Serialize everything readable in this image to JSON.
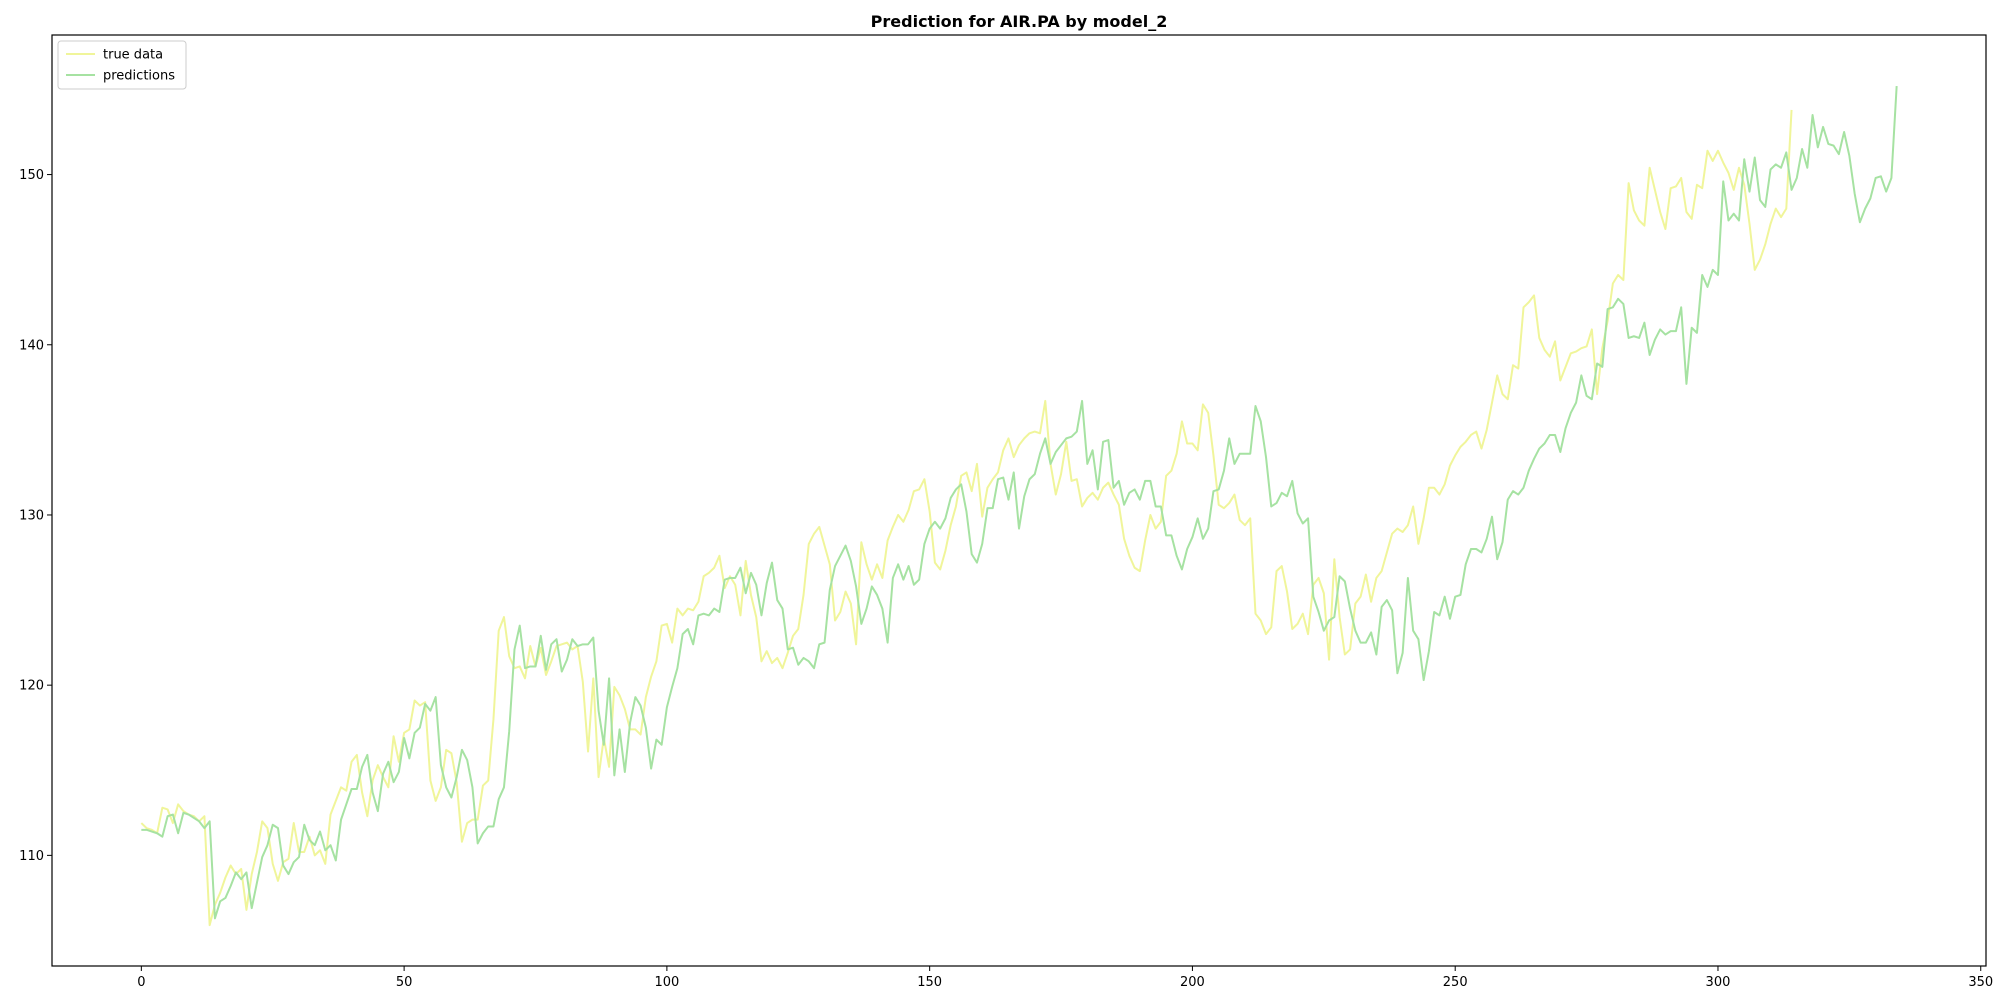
{
  "colors": {
    "true_data": "#f0f59a",
    "predictions": "#a6e2a2",
    "axes": "#000000",
    "legend_border": "#cccccc"
  },
  "chart_data": {
    "type": "line",
    "title": "Prediction for AIR.PA by model_2",
    "xlabel": "",
    "ylabel": "",
    "xlim": [
      -17,
      351
    ],
    "ylim": [
      103.5,
      158.2
    ],
    "xticks": [
      0,
      50,
      100,
      150,
      200,
      250,
      300,
      350
    ],
    "yticks": [
      110,
      120,
      130,
      140,
      150
    ],
    "grid": false,
    "legend_position": "top-left",
    "x_start": 0,
    "series": [
      {
        "name": "true data",
        "color_key": "true_data",
        "values": [
          111.9,
          111.6,
          111.5,
          111.3,
          112.8,
          112.7,
          111.9,
          113.0,
          112.6,
          112.4,
          112.3,
          112.0,
          112.3,
          105.9,
          107.1,
          107.8,
          108.7,
          109.4,
          108.9,
          109.2,
          106.8,
          108.9,
          110.2,
          112.0,
          111.6,
          109.5,
          108.5,
          109.6,
          109.8,
          111.9,
          110.2,
          110.2,
          111.1,
          110.0,
          110.3,
          109.5,
          112.4,
          113.2,
          114.0,
          113.8,
          115.5,
          115.9,
          113.7,
          112.3,
          114.4,
          115.3,
          114.6,
          114.0,
          117.0,
          115.5,
          117.2,
          117.4,
          119.1,
          118.8,
          119.0,
          114.4,
          113.2,
          114.0,
          116.2,
          116.0,
          114.3,
          110.8,
          111.9,
          112.1,
          112.1,
          114.1,
          114.4,
          118.0,
          123.2,
          124.0,
          121.7,
          121.0,
          121.1,
          120.4,
          122.3,
          121.1,
          122.2,
          120.6,
          121.4,
          122.3,
          122.4,
          122.5,
          122.1,
          122.3,
          120.2,
          116.1,
          120.4,
          114.6,
          116.9,
          115.2,
          119.9,
          119.4,
          118.6,
          117.4,
          117.4,
          117.1,
          119.3,
          120.5,
          121.4,
          123.5,
          123.6,
          122.5,
          124.5,
          124.1,
          124.5,
          124.4,
          124.9,
          126.4,
          126.6,
          126.9,
          127.6,
          125.7,
          126.4,
          125.9,
          124.1,
          127.3,
          125.3,
          124.0,
          121.4,
          122.0,
          121.3,
          121.6,
          121.0,
          121.9,
          122.9,
          123.3,
          125.3,
          128.3,
          128.9,
          129.3,
          128.2,
          127.1,
          123.8,
          124.3,
          125.5,
          124.8,
          122.4,
          128.4,
          127.1,
          126.2,
          127.1,
          126.3,
          128.5,
          129.3,
          130.0,
          129.6,
          130.3,
          131.4,
          131.5,
          132.1,
          130.2,
          127.2,
          126.8,
          127.9,
          129.4,
          130.5,
          132.3,
          132.5,
          131.4,
          133.0,
          129.9,
          131.6,
          132.1,
          132.5,
          133.8,
          134.5,
          133.4,
          134.1,
          134.5,
          134.8,
          134.9,
          134.8,
          136.7,
          133.0,
          131.2,
          132.4,
          134.3,
          132.0,
          132.1,
          130.5,
          131.0,
          131.3,
          130.9,
          131.6,
          131.9,
          131.2,
          130.6,
          128.6,
          127.6,
          126.9,
          126.7,
          128.5,
          130.0,
          129.2,
          129.6,
          132.3,
          132.6,
          133.6,
          135.5,
          134.2,
          134.2,
          133.8,
          136.5,
          136.0,
          133.5,
          130.6,
          130.4,
          130.7,
          131.2,
          129.7,
          129.4,
          129.8,
          124.2,
          123.8,
          123.0,
          123.4,
          126.7,
          127.0,
          125.5,
          123.3,
          123.6,
          124.2,
          123.0,
          125.9,
          126.3,
          125.4,
          121.5,
          127.4,
          124.0,
          121.8,
          122.1,
          124.8,
          125.2,
          126.5,
          124.9,
          126.3,
          126.7,
          127.8,
          128.9,
          129.2,
          129.0,
          129.4,
          130.5,
          128.3,
          129.8,
          131.6,
          131.6,
          131.2,
          131.8,
          132.9,
          133.5,
          134.0,
          134.3,
          134.7,
          134.9,
          133.9,
          135.0,
          136.6,
          138.2,
          137.1,
          136.8,
          138.8,
          138.6,
          142.2,
          142.5,
          142.9,
          140.4,
          139.7,
          139.3,
          140.2,
          137.9,
          138.7,
          139.5,
          139.6,
          139.8,
          139.9,
          140.9,
          137.1,
          139.8,
          141.4,
          143.6,
          144.1,
          143.8,
          149.5,
          147.9,
          147.3,
          147.0,
          150.4,
          149.1,
          147.8,
          146.8,
          149.2,
          149.3,
          149.8,
          147.8,
          147.4,
          149.4,
          149.2,
          151.4,
          150.8,
          151.4,
          150.7,
          150.1,
          149.1,
          150.4,
          149.4,
          147.1,
          144.4,
          145.0,
          145.9,
          147.1,
          148.0,
          147.5,
          148.0,
          153.8
        ]
      },
      {
        "name": "predictions",
        "color_key": "predictions",
        "values": [
          111.5,
          111.5,
          111.4,
          111.3,
          111.1,
          112.3,
          112.4,
          111.3,
          112.5,
          112.4,
          112.2,
          112.0,
          111.6,
          112.0,
          106.3,
          107.3,
          107.5,
          108.2,
          109.0,
          108.6,
          109.0,
          106.9,
          108.4,
          109.9,
          110.6,
          111.8,
          111.6,
          109.4,
          108.9,
          109.6,
          109.9,
          111.8,
          110.9,
          110.6,
          111.4,
          110.3,
          110.6,
          109.7,
          112.1,
          113.0,
          113.9,
          113.9,
          115.2,
          115.9,
          113.7,
          112.6,
          114.8,
          115.5,
          114.3,
          114.9,
          116.9,
          115.7,
          117.2,
          117.5,
          118.9,
          118.5,
          119.3,
          115.3,
          114.0,
          113.4,
          114.6,
          116.2,
          115.6,
          114.0,
          110.7,
          111.3,
          111.7,
          111.7,
          113.3,
          114.0,
          117.3,
          122.1,
          123.5,
          121.0,
          121.1,
          121.1,
          122.9,
          120.9,
          122.4,
          122.7,
          120.8,
          121.5,
          122.7,
          122.3,
          122.4,
          122.4,
          122.8,
          118.5,
          116.5,
          120.4,
          114.7,
          117.4,
          114.9,
          117.8,
          119.3,
          118.8,
          117.5,
          115.1,
          116.8,
          116.5,
          118.7,
          119.9,
          121.0,
          123.0,
          123.3,
          122.4,
          124.1,
          124.2,
          124.1,
          124.5,
          124.3,
          126.2,
          126.3,
          126.3,
          126.9,
          125.4,
          126.6,
          125.9,
          124.1,
          126.0,
          127.2,
          125.0,
          124.5,
          122.1,
          122.2,
          121.2,
          121.6,
          121.4,
          121.0,
          122.4,
          122.5,
          125.6,
          127.0,
          127.6,
          128.2,
          127.3,
          125.8,
          123.6,
          124.5,
          125.8,
          125.3,
          124.5,
          122.5,
          126.3,
          127.1,
          126.2,
          127.0,
          125.9,
          126.2,
          128.3,
          129.2,
          129.6,
          129.2,
          129.8,
          131.0,
          131.5,
          131.8,
          130.2,
          127.7,
          127.2,
          128.3,
          130.4,
          130.4,
          132.1,
          132.2,
          130.9,
          132.5,
          129.2,
          131.1,
          132.1,
          132.4,
          133.6,
          134.5,
          133.0,
          133.7,
          134.1,
          134.5,
          134.6,
          134.9,
          136.7,
          133.0,
          133.8,
          131.5,
          134.3,
          134.4,
          131.6,
          132.0,
          130.6,
          131.3,
          131.5,
          130.9,
          132.0,
          132.0,
          130.5,
          130.5,
          128.8,
          128.8,
          127.6,
          126.8,
          128.0,
          128.7,
          129.8,
          128.6,
          129.2,
          131.4,
          131.5,
          132.6,
          134.5,
          133.0,
          133.6,
          133.6,
          133.6,
          136.4,
          135.5,
          133.4,
          130.5,
          130.7,
          131.3,
          131.1,
          132.0,
          130.1,
          129.5,
          129.8,
          125.2,
          124.3,
          123.2,
          123.8,
          124.0,
          126.4,
          126.1,
          124.5,
          123.2,
          122.5,
          122.5,
          123.1,
          121.8,
          124.6,
          125.0,
          124.4,
          120.7,
          121.9,
          126.3,
          123.2,
          122.7,
          120.3,
          122.0,
          124.3,
          124.1,
          125.2,
          123.9,
          125.2,
          125.3,
          127.1,
          128.0,
          128.0,
          127.8,
          128.6,
          129.9,
          127.4,
          128.4,
          130.9,
          131.4,
          131.2,
          131.6,
          132.6,
          133.3,
          133.9,
          134.2,
          134.7,
          134.7,
          133.7,
          135.1,
          136.0,
          136.6,
          138.2,
          137.0,
          136.8,
          138.9,
          138.7,
          142.1,
          142.2,
          142.7,
          142.4,
          140.4,
          140.5,
          140.4,
          141.3,
          139.4,
          140.3,
          140.9,
          140.6,
          140.8,
          140.8,
          142.2,
          137.7,
          141.0,
          140.7,
          144.1,
          143.4,
          144.4,
          144.1,
          149.6,
          147.3,
          147.7,
          147.3,
          150.9,
          149.0,
          151.0,
          148.5,
          148.1,
          150.3,
          150.6,
          150.4,
          151.3,
          149.1,
          149.8,
          151.5,
          150.4,
          153.5,
          151.6,
          152.8,
          151.8,
          151.7,
          151.2,
          152.5,
          151.1,
          148.9,
          147.2,
          148.0,
          148.6,
          149.8,
          149.9,
          149.0,
          149.8,
          155.2
        ]
      }
    ]
  }
}
